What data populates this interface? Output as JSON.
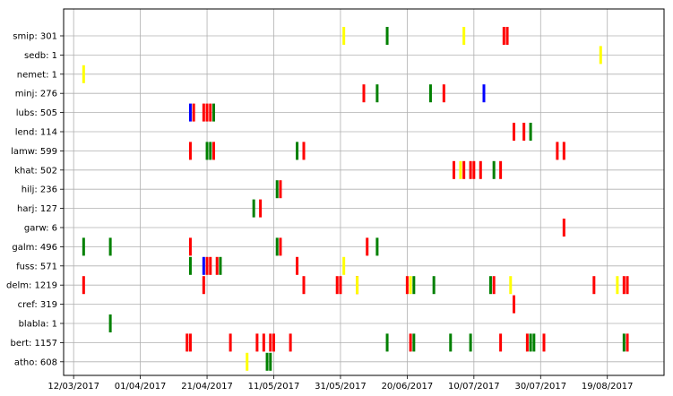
{
  "chart_data": {
    "type": "timeline",
    "grid": true,
    "x_type": "date",
    "xlim": [
      "2017-03-09",
      "2017-09-05"
    ],
    "x_ticks": [
      "2017-03-12",
      "2017-04-01",
      "2017-04-21",
      "2017-05-11",
      "2017-05-31",
      "2017-06-20",
      "2017-07-10",
      "2017-07-30",
      "2017-08-19"
    ],
    "x_tick_labels": [
      "12/03/2017",
      "01/04/2017",
      "21/04/2017",
      "11/05/2017",
      "31/05/2017",
      "20/06/2017",
      "10/07/2017",
      "30/07/2017",
      "19/08/2017"
    ],
    "colors": {
      "red": "#ff0000",
      "green": "#008000",
      "yellow": "#ffff00",
      "blue": "#0000ff"
    },
    "rows": [
      {
        "label": "smip: 301",
        "events": [
          {
            "date": "2017-06-01",
            "color": "yellow"
          },
          {
            "date": "2017-06-14",
            "color": "green"
          },
          {
            "date": "2017-07-07",
            "color": "yellow"
          },
          {
            "date": "2017-07-19",
            "color": "red"
          },
          {
            "date": "2017-07-20",
            "color": "red"
          }
        ]
      },
      {
        "label": "sedb: 1",
        "events": [
          {
            "date": "2017-08-17",
            "color": "yellow"
          }
        ]
      },
      {
        "label": "nemet: 1",
        "events": [
          {
            "date": "2017-03-15",
            "color": "yellow"
          }
        ]
      },
      {
        "label": "minj: 276",
        "events": [
          {
            "date": "2017-06-07",
            "color": "red"
          },
          {
            "date": "2017-06-11",
            "color": "green"
          },
          {
            "date": "2017-06-27",
            "color": "green"
          },
          {
            "date": "2017-07-01",
            "color": "red"
          },
          {
            "date": "2017-07-13",
            "color": "blue"
          }
        ]
      },
      {
        "label": "lubs: 505",
        "events": [
          {
            "date": "2017-04-16",
            "color": "blue"
          },
          {
            "date": "2017-04-17",
            "color": "red"
          },
          {
            "date": "2017-04-20",
            "color": "red"
          },
          {
            "date": "2017-04-21",
            "color": "red"
          },
          {
            "date": "2017-04-22",
            "color": "red"
          },
          {
            "date": "2017-04-23",
            "color": "green"
          }
        ]
      },
      {
        "label": "lend: 114",
        "events": [
          {
            "date": "2017-07-22",
            "color": "red"
          },
          {
            "date": "2017-07-25",
            "color": "red"
          },
          {
            "date": "2017-07-27",
            "color": "green"
          }
        ]
      },
      {
        "label": "lamw: 599",
        "events": [
          {
            "date": "2017-04-16",
            "color": "red"
          },
          {
            "date": "2017-04-21",
            "color": "green"
          },
          {
            "date": "2017-04-22",
            "color": "green"
          },
          {
            "date": "2017-04-23",
            "color": "red"
          },
          {
            "date": "2017-05-18",
            "color": "green"
          },
          {
            "date": "2017-05-20",
            "color": "red"
          },
          {
            "date": "2017-08-04",
            "color": "red"
          },
          {
            "date": "2017-08-06",
            "color": "red"
          }
        ]
      },
      {
        "label": "khat: 502",
        "events": [
          {
            "date": "2017-07-04",
            "color": "red"
          },
          {
            "date": "2017-07-06",
            "color": "yellow"
          },
          {
            "date": "2017-07-07",
            "color": "red"
          },
          {
            "date": "2017-07-09",
            "color": "red"
          },
          {
            "date": "2017-07-10",
            "color": "red"
          },
          {
            "date": "2017-07-12",
            "color": "red"
          },
          {
            "date": "2017-07-16",
            "color": "green"
          },
          {
            "date": "2017-07-18",
            "color": "red"
          }
        ]
      },
      {
        "label": "hilj: 236",
        "events": [
          {
            "date": "2017-05-12",
            "color": "green"
          },
          {
            "date": "2017-05-13",
            "color": "red"
          }
        ]
      },
      {
        "label": "harj: 127",
        "events": [
          {
            "date": "2017-05-05",
            "color": "green"
          },
          {
            "date": "2017-05-07",
            "color": "red"
          }
        ]
      },
      {
        "label": "garw: 6",
        "events": [
          {
            "date": "2017-08-06",
            "color": "red"
          }
        ]
      },
      {
        "label": "galm: 496",
        "events": [
          {
            "date": "2017-03-15",
            "color": "green"
          },
          {
            "date": "2017-03-23",
            "color": "green"
          },
          {
            "date": "2017-04-16",
            "color": "red"
          },
          {
            "date": "2017-05-12",
            "color": "green"
          },
          {
            "date": "2017-05-13",
            "color": "red"
          },
          {
            "date": "2017-06-08",
            "color": "red"
          },
          {
            "date": "2017-06-11",
            "color": "green"
          }
        ]
      },
      {
        "label": "fuss: 571",
        "events": [
          {
            "date": "2017-04-16",
            "color": "green"
          },
          {
            "date": "2017-04-20",
            "color": "blue"
          },
          {
            "date": "2017-04-21",
            "color": "red"
          },
          {
            "date": "2017-04-22",
            "color": "red"
          },
          {
            "date": "2017-04-24",
            "color": "red"
          },
          {
            "date": "2017-04-25",
            "color": "green"
          },
          {
            "date": "2017-05-18",
            "color": "red"
          },
          {
            "date": "2017-06-01",
            "color": "yellow"
          }
        ]
      },
      {
        "label": "delm: 1219",
        "events": [
          {
            "date": "2017-03-15",
            "color": "red"
          },
          {
            "date": "2017-04-20",
            "color": "red"
          },
          {
            "date": "2017-05-20",
            "color": "red"
          },
          {
            "date": "2017-05-30",
            "color": "red"
          },
          {
            "date": "2017-05-31",
            "color": "red"
          },
          {
            "date": "2017-06-05",
            "color": "red"
          },
          {
            "date": "2017-06-05",
            "color": "yellow"
          },
          {
            "date": "2017-06-20",
            "color": "red"
          },
          {
            "date": "2017-06-21",
            "color": "yellow"
          },
          {
            "date": "2017-06-22",
            "color": "green"
          },
          {
            "date": "2017-06-28",
            "color": "green"
          },
          {
            "date": "2017-07-15",
            "color": "green"
          },
          {
            "date": "2017-07-16",
            "color": "red"
          },
          {
            "date": "2017-07-21",
            "color": "yellow"
          },
          {
            "date": "2017-08-15",
            "color": "red"
          },
          {
            "date": "2017-08-22",
            "color": "yellow"
          },
          {
            "date": "2017-08-24",
            "color": "red"
          },
          {
            "date": "2017-08-25",
            "color": "red"
          }
        ]
      },
      {
        "label": "cref: 319",
        "events": [
          {
            "date": "2017-07-22",
            "color": "red"
          }
        ]
      },
      {
        "label": "blabla: 1",
        "events": [
          {
            "date": "2017-03-23",
            "color": "green"
          }
        ]
      },
      {
        "label": "bert: 1157",
        "events": [
          {
            "date": "2017-04-15",
            "color": "red"
          },
          {
            "date": "2017-04-16",
            "color": "red"
          },
          {
            "date": "2017-04-28",
            "color": "red"
          },
          {
            "date": "2017-05-06",
            "color": "red"
          },
          {
            "date": "2017-05-08",
            "color": "red"
          },
          {
            "date": "2017-05-10",
            "color": "red"
          },
          {
            "date": "2017-05-11",
            "color": "red"
          },
          {
            "date": "2017-05-16",
            "color": "red"
          },
          {
            "date": "2017-06-14",
            "color": "green"
          },
          {
            "date": "2017-06-21",
            "color": "red"
          },
          {
            "date": "2017-06-22",
            "color": "green"
          },
          {
            "date": "2017-07-03",
            "color": "green"
          },
          {
            "date": "2017-07-09",
            "color": "green"
          },
          {
            "date": "2017-07-18",
            "color": "red"
          },
          {
            "date": "2017-07-26",
            "color": "red"
          },
          {
            "date": "2017-07-27",
            "color": "green"
          },
          {
            "date": "2017-07-28",
            "color": "green"
          },
          {
            "date": "2017-07-31",
            "color": "red"
          },
          {
            "date": "2017-08-24",
            "color": "green"
          },
          {
            "date": "2017-08-25",
            "color": "red"
          }
        ]
      },
      {
        "label": "atho: 608",
        "events": [
          {
            "date": "2017-05-03",
            "color": "yellow"
          },
          {
            "date": "2017-05-09",
            "color": "green"
          },
          {
            "date": "2017-05-10",
            "color": "green"
          }
        ]
      }
    ]
  }
}
